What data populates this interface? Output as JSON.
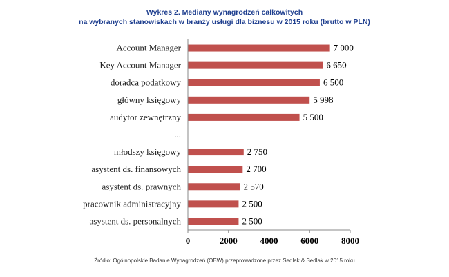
{
  "chart_data": {
    "type": "bar",
    "orientation": "horizontal",
    "title": "Wykres 2. Mediany wynagrodzeń całkowitych",
    "subtitle": "na wybranych stanowiskach w branży usługi dla biznesu w 2015 roku (brutto w PLN)",
    "categories": [
      "Account Manager",
      "Key Account Manager",
      "doradca podatkowy",
      "główny księgowy",
      "audytor zewnętrzny",
      "...",
      "młodszy księgowy",
      "asystent ds. finansowych",
      "asystent ds. prawnych",
      "pracownik administracyjny",
      "asystent ds. personalnych"
    ],
    "values": [
      7000,
      6650,
      6500,
      5998,
      5500,
      null,
      2750,
      2700,
      2570,
      2500,
      2500
    ],
    "value_labels": [
      "7 000",
      "6 650",
      "6 500",
      "5 998",
      "5 500",
      "",
      "2 750",
      "2 700",
      "2 570",
      "2 500",
      "2 500"
    ],
    "xlim": [
      0,
      8000
    ],
    "xticks": [
      0,
      2000,
      4000,
      6000,
      8000
    ],
    "grid": false,
    "bar_color": "#c0504d",
    "source": "Źródło: Ogólnopolskie Badanie Wynagrodzeń (OBW) przeprowadzone przez Sedlak & Sedlak w 2015 roku"
  }
}
